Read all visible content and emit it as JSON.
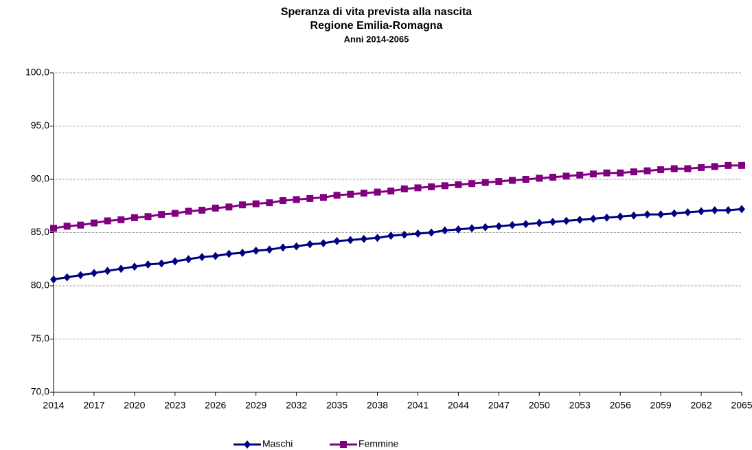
{
  "chart_data": {
    "type": "line",
    "title": "Speranza di vita prevista alla nascita",
    "subtitle": "Regione Emilia-Romagna",
    "subtitle2": "Anni 2014-2065",
    "x": [
      2014,
      2015,
      2016,
      2017,
      2018,
      2019,
      2020,
      2021,
      2022,
      2023,
      2024,
      2025,
      2026,
      2027,
      2028,
      2029,
      2030,
      2031,
      2032,
      2033,
      2034,
      2035,
      2036,
      2037,
      2038,
      2039,
      2040,
      2041,
      2042,
      2043,
      2044,
      2045,
      2046,
      2047,
      2048,
      2049,
      2050,
      2051,
      2052,
      2053,
      2054,
      2055,
      2056,
      2057,
      2058,
      2059,
      2060,
      2061,
      2062,
      2063,
      2064,
      2065
    ],
    "series": [
      {
        "name": "Maschi",
        "color": "#000080",
        "marker": "diamond",
        "values": [
          80.6,
          80.8,
          81.0,
          81.2,
          81.4,
          81.6,
          81.8,
          82.0,
          82.1,
          82.3,
          82.5,
          82.7,
          82.8,
          83.0,
          83.1,
          83.3,
          83.4,
          83.6,
          83.7,
          83.9,
          84.0,
          84.2,
          84.3,
          84.4,
          84.5,
          84.7,
          84.8,
          84.9,
          85.0,
          85.2,
          85.3,
          85.4,
          85.5,
          85.6,
          85.7,
          85.8,
          85.9,
          86.0,
          86.1,
          86.2,
          86.3,
          86.4,
          86.5,
          86.6,
          86.7,
          86.7,
          86.8,
          86.9,
          87.0,
          87.1,
          87.1,
          87.2
        ]
      },
      {
        "name": "Femmine",
        "color": "#800080",
        "marker": "square",
        "values": [
          85.4,
          85.6,
          85.7,
          85.9,
          86.1,
          86.2,
          86.4,
          86.5,
          86.7,
          86.8,
          87.0,
          87.1,
          87.3,
          87.4,
          87.6,
          87.7,
          87.8,
          88.0,
          88.1,
          88.2,
          88.3,
          88.5,
          88.6,
          88.7,
          88.8,
          88.9,
          89.1,
          89.2,
          89.3,
          89.4,
          89.5,
          89.6,
          89.7,
          89.8,
          89.9,
          90.0,
          90.1,
          90.2,
          90.3,
          90.4,
          90.5,
          90.6,
          90.6,
          90.7,
          90.8,
          90.9,
          91.0,
          91.0,
          91.1,
          91.2,
          91.3,
          91.3
        ]
      }
    ],
    "xlim": [
      2014,
      2065
    ],
    "xticks": [
      2014,
      2017,
      2020,
      2023,
      2026,
      2029,
      2032,
      2035,
      2038,
      2041,
      2044,
      2047,
      2050,
      2053,
      2056,
      2059,
      2062,
      2065
    ],
    "ylim": [
      70,
      100
    ],
    "yticks": [
      {
        "value": 70,
        "label": "70,0"
      },
      {
        "value": 75,
        "label": "75,0"
      },
      {
        "value": 80,
        "label": "80,0"
      },
      {
        "value": 85,
        "label": "85,0"
      },
      {
        "value": 90,
        "label": "90,0"
      },
      {
        "value": 95,
        "label": "95,0"
      },
      {
        "value": 100,
        "label": "100,0"
      }
    ],
    "grid": true,
    "legend": "bottom"
  }
}
